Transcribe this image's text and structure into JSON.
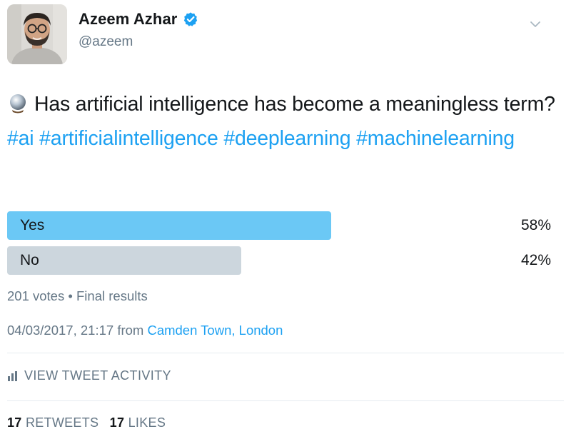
{
  "author": {
    "display_name": "Azeem Azhar",
    "handle": "@azeem",
    "verified": true
  },
  "tweet": {
    "text_before": "Has artificial intelligence has become a meaningless term?",
    "hashtags": [
      "#ai",
      "#artificialintelligence",
      "#deeplearning",
      "#machinelearning"
    ]
  },
  "poll": {
    "options": [
      {
        "label": "Yes",
        "percent_text": "58%",
        "percent": 58,
        "bar_color": "#6bc8f5"
      },
      {
        "label": "No",
        "percent_text": "42%",
        "percent": 42,
        "bar_color": "#ccd6dd"
      }
    ],
    "votes_text": "201 votes",
    "status_text": "Final results"
  },
  "meta": {
    "timestamp": "04/03/2017, 21:17",
    "from_label": "from",
    "location": "Camden Town, London"
  },
  "activity": {
    "label": "VIEW TWEET ACTIVITY",
    "icon": "bar-chart-icon"
  },
  "stats": {
    "retweets_count": "17",
    "retweets_label": "RETWEETS",
    "likes_count": "17",
    "likes_label": "LIKES"
  },
  "colors": {
    "link": "#1da1f2",
    "secondary_text": "#657786",
    "primary_text": "#14171a",
    "verified": "#1da1f2"
  }
}
